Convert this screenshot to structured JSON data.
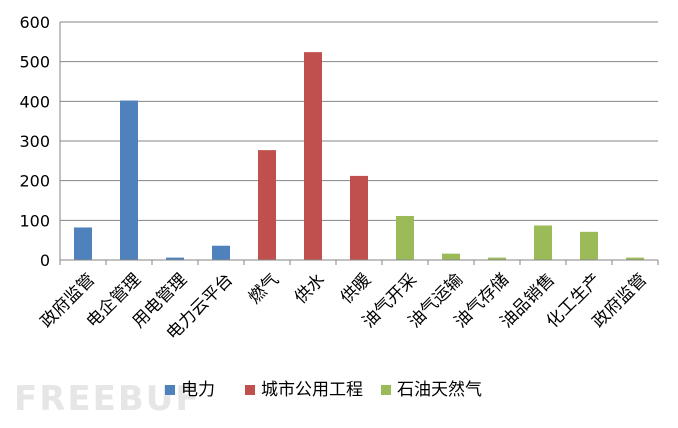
{
  "chart_data": {
    "type": "bar",
    "title": "",
    "xlabel": "",
    "ylabel": "",
    "ylim": [
      0,
      600
    ],
    "yticks": [
      0,
      100,
      200,
      300,
      400,
      500,
      600
    ],
    "grid": true,
    "legend_position": "bottom",
    "categories": [
      "政府监管",
      "电企管理",
      "用电管理",
      "电力云平台",
      "燃气",
      "供水",
      "供暖",
      "油气开采",
      "油气运输",
      "油气存储",
      "油品销售",
      "化工生产",
      "政府监管"
    ],
    "series": [
      {
        "name": "电力",
        "color": "#4F81BD",
        "values": [
          82,
          402,
          6,
          36,
          null,
          null,
          null,
          null,
          null,
          null,
          null,
          null,
          null
        ]
      },
      {
        "name": "城市公用工程",
        "color": "#C0504D",
        "values": [
          null,
          null,
          null,
          null,
          277,
          524,
          212,
          null,
          null,
          null,
          null,
          null,
          null
        ]
      },
      {
        "name": "石油天然气",
        "color": "#9BBB59",
        "values": [
          null,
          null,
          null,
          null,
          null,
          null,
          null,
          111,
          16,
          6,
          87,
          71,
          6
        ]
      }
    ]
  },
  "watermark": {
    "text": "FREEBUF"
  }
}
